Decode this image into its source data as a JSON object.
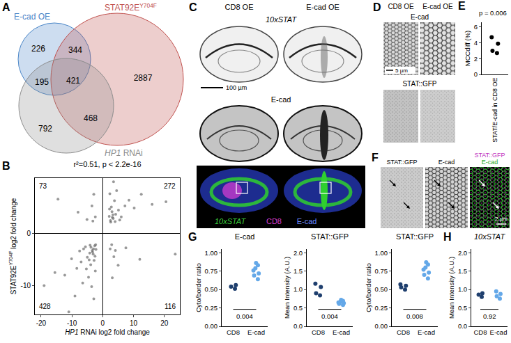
{
  "figure": {
    "A": {
      "letter": "A",
      "sets": [
        {
          "label": [
            {
              "text": "E-cad OE"
            }
          ],
          "color": "#4a86c8"
        },
        {
          "label": [
            {
              "text": "STAT92E"
            },
            {
              "text": "Y704F",
              "sup": true
            }
          ],
          "color": "#c0504d"
        },
        {
          "label": [
            {
              "text": "HP1",
              "italic": true
            },
            {
              "text": " RNAi"
            }
          ],
          "color": "#8c8c8c"
        }
      ],
      "regions": {
        "1": 226,
        "12": 344,
        "13": 195,
        "123": 421,
        "2": 2887,
        "23": 468,
        "3": 792
      }
    },
    "C": {
      "letter": "C",
      "columns": [
        "CD8 OE",
        "E-cad OE"
      ],
      "rows": [
        [
          {
            "text": "10xSTAT",
            "italic": true
          }
        ],
        [
          {
            "text": "E-cad"
          }
        ],
        [
          {
            "text": "10xSTAT",
            "italic": true,
            "color": "#3ccf3c"
          },
          {
            "text": "CD8",
            "color": "#d23cd2"
          },
          {
            "text": "E-cad",
            "color": "#6f8cff"
          }
        ]
      ],
      "scale_bar": "100 µm"
    },
    "D": {
      "letter": "D",
      "columns": [
        "CD8 OE",
        "E-cad OE"
      ],
      "rows": [
        "E-cad",
        "STAT::GFP"
      ],
      "scale_bar": "5 µm"
    },
    "F": {
      "letter": "F",
      "columns": [
        [
          {
            "text": "STAT::GFP"
          }
        ],
        [
          {
            "text": "E-cad"
          }
        ],
        [
          {
            "text": "STAT::GFP",
            "color": "#c030c0"
          },
          {
            "text": "E-cad",
            "color": "#2aa82a"
          }
        ]
      ],
      "scale_bar": "2 µm"
    }
  },
  "chart_data": [
    {
      "panel": "B",
      "type": "scatter",
      "title": "r²=0.51, p < 2.2e-16",
      "x_label": [
        {
          "text": "HP1",
          "italic": true
        },
        {
          "text": " RNAi log2 fold change"
        }
      ],
      "y_label": [
        {
          "text": "STAT92E"
        },
        {
          "text": "Y704F",
          "sup": true
        },
        {
          "text": " log2 fold change"
        }
      ],
      "color": "#555555",
      "x": [
        2.1,
        2.5,
        3.0,
        3.4,
        2.8,
        4.2,
        3.8,
        5.1,
        2.3,
        6.0,
        4.5,
        7.2,
        2.6,
        3.1,
        8.5,
        10.2,
        12.5,
        3.5,
        5.5,
        16.0,
        20.5,
        2.2,
        3.3,
        4.0,
        -2.4,
        -3.5,
        -5.1,
        -2.9,
        -8.0,
        -14.5,
        -3.2,
        2.4,
        3.6,
        2.9,
        5.0,
        4.1,
        7.5,
        12.0,
        3.1,
        23.5,
        -2.2,
        -2.6,
        -3.1,
        -3.4,
        -2.8,
        -4.2,
        -3.9,
        -5.0,
        -2.4,
        -6.2,
        -4.6,
        -7.0,
        -2.3,
        -3.0,
        -8.4,
        -10.1,
        -12.3,
        -3.6,
        -5.6,
        -15.5,
        -2.5,
        -3.3,
        -4.1,
        -6.5,
        -9.0,
        -11.0,
        -2.9,
        -7.5,
        -4.4,
        -3.8,
        -19.0,
        -5.3
      ],
      "values": [
        3.2,
        2.4,
        4.1,
        2.8,
        5.0,
        3.6,
        6.2,
        4.4,
        7.5,
        3.1,
        8.1,
        5.2,
        2.1,
        3.0,
        6.3,
        4.8,
        7.4,
        9.8,
        2.5,
        5.5,
        6.0,
        4.6,
        3.5,
        2.2,
        3.1,
        5.2,
        2.6,
        7.4,
        4.0,
        6.5,
        2.3,
        -3.0,
        -4.5,
        -2.2,
        -6.1,
        -3.3,
        -2.8,
        -5.0,
        -8.5,
        -4.0,
        -3.1,
        -2.4,
        -4.0,
        -3.3,
        -5.2,
        -3.8,
        -6.0,
        -4.6,
        -7.2,
        -3.0,
        -8.4,
        -5.5,
        -2.2,
        -3.0,
        -6.7,
        -4.9,
        -8.0,
        -10.2,
        -2.6,
        -7.5,
        -4.4,
        -3.6,
        -2.3,
        -9.5,
        -12.0,
        -15.0,
        -12.5,
        -3.4,
        -5.1,
        -2.7,
        -10.0,
        -6.8
      ],
      "xlim": [
        -22,
        25
      ],
      "xticks": [
        -20,
        -10,
        0,
        10,
        20
      ],
      "ylim": [
        -15.5,
        10.5
      ],
      "yticks": [
        -10,
        0
      ],
      "quadrant_counts": {
        "upper_left": 73,
        "upper_right": 272,
        "lower_left": 428,
        "lower_right": 116
      }
    },
    {
      "panel": "E",
      "type": "strip",
      "annotation": "p = 0.006",
      "categories": [
        "STAT/E-cad in CD8 OE"
      ],
      "values": [
        [
          4.7,
          3.9,
          3.0,
          2.7
        ]
      ],
      "colors": [
        "#000000"
      ],
      "y_label": [
        {
          "text": "MCCdiff (%)"
        }
      ],
      "ylim": [
        0,
        6.6
      ],
      "yticks": [
        0,
        2,
        4,
        6
      ]
    },
    {
      "panel": "G",
      "type": "strip",
      "title": [
        {
          "text": "E-cad"
        }
      ],
      "categories": [
        "CD8",
        "E-cad"
      ],
      "values": [
        [
          0.51,
          0.54,
          0.56
        ],
        [
          0.64,
          0.69,
          0.72,
          0.76,
          0.79,
          0.83,
          0.86
        ]
      ],
      "colors": [
        "#1f3f6e",
        "#64a8e8"
      ],
      "y_label": [
        {
          "text": "Cyto/border ratio"
        }
      ],
      "ylim": [
        0,
        1.05
      ],
      "yticks": [
        {
          "value": 0,
          "label": "0.00"
        },
        0.25,
        {
          "value": 0.5,
          "label": "0.50"
        },
        0.75,
        {
          "value": 1,
          "label": "1.00"
        }
      ],
      "p_value": "0.004"
    },
    {
      "type": "strip",
      "title": [
        {
          "text": "STAT::GFP"
        }
      ],
      "categories": [
        "CD8",
        "E-cad"
      ],
      "values": [
        [
          0.84,
          0.9,
          1.07,
          1.16
        ],
        [
          0.58,
          0.61,
          0.63,
          0.65,
          0.67,
          0.69,
          0.72
        ]
      ],
      "colors": [
        "#1f3f6e",
        "#64a8e8"
      ],
      "y_label": [
        {
          "text": "Mean Intensity (A.U.)"
        }
      ],
      "ylim": [
        0,
        2.1
      ],
      "yticks": [
        {
          "value": 0,
          "label": "0.0"
        },
        0.5,
        {
          "value": 1,
          "label": "1.0"
        },
        1.5,
        {
          "value": 2,
          "label": "2.0"
        }
      ],
      "p_value": "0.004"
    },
    {
      "type": "strip",
      "title": [
        {
          "text": "STAT::GFP"
        }
      ],
      "categories": [
        "CD8",
        "E-cad"
      ],
      "values": [
        [
          0.5,
          0.53,
          0.55,
          0.57
        ],
        [
          0.65,
          0.7,
          0.73,
          0.77,
          0.8,
          0.84,
          0.87
        ]
      ],
      "colors": [
        "#1f3f6e",
        "#64a8e8"
      ],
      "y_label": [
        {
          "text": "Cyto/border ratio"
        }
      ],
      "ylim": [
        0,
        1.05
      ],
      "yticks": [
        {
          "value": 0,
          "label": "0.00"
        },
        0.25,
        {
          "value": 0.5,
          "label": "0.50"
        },
        0.75,
        {
          "value": 1,
          "label": "1.00"
        }
      ],
      "p_value": "0.008"
    },
    {
      "panel": "H",
      "type": "strip",
      "title": [
        {
          "text": "10xSTAT",
          "italic": true
        }
      ],
      "categories": [
        "CD8",
        "E-cad"
      ],
      "values": [
        [
          0.8,
          0.86,
          0.9
        ],
        [
          0.75,
          0.82,
          0.88,
          0.95
        ]
      ],
      "colors": [
        "#1f3f6e",
        "#64a8e8"
      ],
      "y_label": [
        {
          "text": "Mean Intensity (A.U.)"
        }
      ],
      "ylim": [
        0,
        2.1
      ],
      "yticks": [
        {
          "value": 0,
          "label": "0.0"
        },
        0.5,
        {
          "value": 1,
          "label": "1.0"
        },
        1.5,
        {
          "value": 2,
          "label": "2.0"
        }
      ],
      "p_value": "0.92"
    }
  ]
}
